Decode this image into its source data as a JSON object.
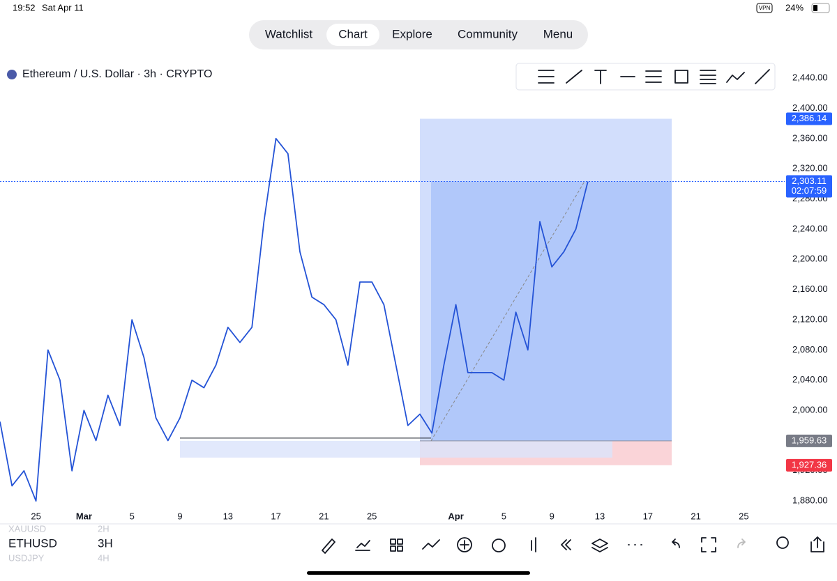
{
  "status_bar": {
    "time": "19:52",
    "date": "Sat Apr 11",
    "vpn": "VPN",
    "battery": "24%"
  },
  "nav": {
    "tabs": [
      "Watchlist",
      "Chart",
      "Explore",
      "Community",
      "Menu"
    ],
    "active": 1
  },
  "symbol_title": "Ethereum / U.S. Dollar · 3h · CRYPTO",
  "chart_data": {
    "type": "line",
    "color": "#2453d6",
    "categories": [
      null,
      null,
      null,
      "25",
      null,
      null,
      null,
      "Mar",
      null,
      null,
      null,
      "5",
      null,
      null,
      null,
      "9",
      null,
      null,
      null,
      "13",
      null,
      null,
      null,
      "17",
      null,
      null,
      null,
      "21",
      null,
      null,
      null,
      "25",
      null,
      null,
      null,
      null,
      null,
      null,
      "Apr",
      null,
      null,
      null,
      "5",
      null,
      null,
      null,
      "9",
      null,
      null,
      null,
      "13",
      null,
      null,
      null,
      "17",
      null,
      null,
      null,
      "21",
      null,
      null,
      null,
      "25",
      null,
      null
    ],
    "values": [
      1985,
      1900,
      1920,
      1880,
      2080,
      2040,
      1920,
      2000,
      1960,
      2020,
      1980,
      2120,
      2070,
      1990,
      1960,
      1990,
      2040,
      2030,
      2060,
      2110,
      2090,
      2110,
      2250,
      2360,
      2340,
      2210,
      2150,
      2140,
      2120,
      2060,
      2170,
      2170,
      2140,
      2060,
      1980,
      1995,
      1970,
      2060,
      2140,
      2050,
      2050,
      2050,
      2040,
      2130,
      2080,
      2250,
      2190,
      2210,
      2240,
      2303,
      null,
      null,
      null,
      null,
      null,
      null,
      null,
      null,
      null,
      null,
      null,
      null,
      null,
      null,
      null
    ],
    "ylim": [
      1870,
      2465
    ],
    "yticks": [
      {
        "value": 1880,
        "label": "1,880.00"
      },
      {
        "value": 1920,
        "label": "1,920.00"
      },
      {
        "value": 2000,
        "label": "2,000.00"
      },
      {
        "value": 2040,
        "label": "2,040.00"
      },
      {
        "value": 2080,
        "label": "2,080.00"
      },
      {
        "value": 2120,
        "label": "2,120.00"
      },
      {
        "value": 2160,
        "label": "2,160.00"
      },
      {
        "value": 2200,
        "label": "2,200.00"
      },
      {
        "value": 2240,
        "label": "2,240.00"
      },
      {
        "value": 2280,
        "label": "2,280.00"
      },
      {
        "value": 2320,
        "label": "2,320.00"
      },
      {
        "value": 2360,
        "label": "2,360.00"
      },
      {
        "value": 2400,
        "label": "2,400.00"
      },
      {
        "value": 2440,
        "label": "2,440.00"
      }
    ],
    "current_price": {
      "value": 2303.11,
      "label": "2,303.11"
    },
    "countdown": "02:07:59",
    "position": {
      "target": {
        "value": 2386.14,
        "label": "2,386.14"
      },
      "entry": {
        "value": 1959.63,
        "label": "1,959.63"
      },
      "stop": {
        "value": 1927.36,
        "label": "1,927.36"
      }
    }
  },
  "watchlist": [
    {
      "symbol": "XAUUSD",
      "interval": "2H"
    },
    {
      "symbol": "ETHUSD",
      "interval": "3H"
    },
    {
      "symbol": "USDJPY",
      "interval": "4H"
    }
  ]
}
